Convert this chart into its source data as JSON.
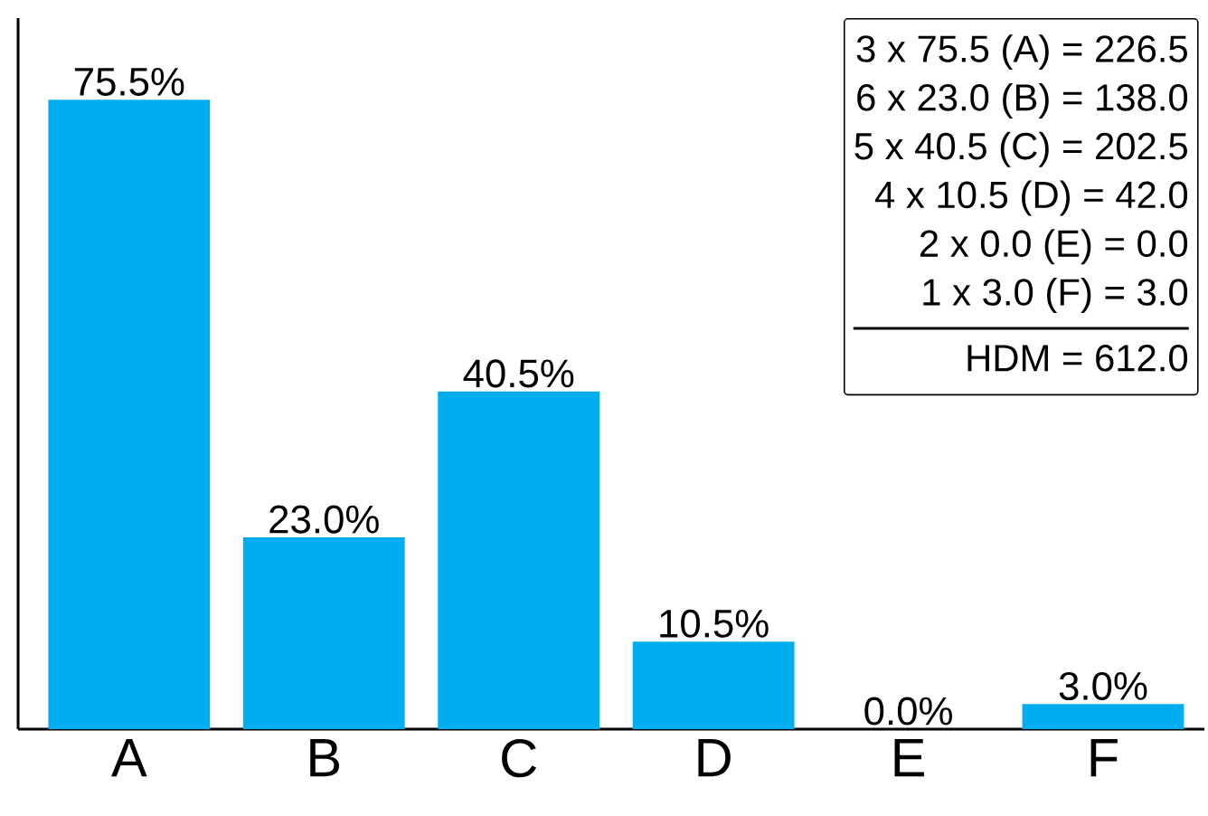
{
  "chart_data": {
    "type": "bar",
    "categories": [
      "A",
      "B",
      "C",
      "D",
      "E",
      "F"
    ],
    "values": [
      75.5,
      23.0,
      40.5,
      10.5,
      0.0,
      3.0
    ],
    "value_labels": [
      "75.5%",
      "23.0%",
      "40.5%",
      "10.5%",
      "0.0%",
      "3.0%"
    ],
    "color": "#00aeef",
    "ylim": [
      0,
      85.3
    ],
    "annotations": [
      "3 x 75.5 (A) = 226.5",
      "6 x 23.0 (B) = 138.0",
      "5 x 40.5 (C) = 202.5",
      "4 x 10.5 (D) =   42.0",
      "2 x 0.0 (E) =     0.0",
      "1 x 3.0 (F) =     3.0",
      "HDM = 612.0"
    ]
  }
}
